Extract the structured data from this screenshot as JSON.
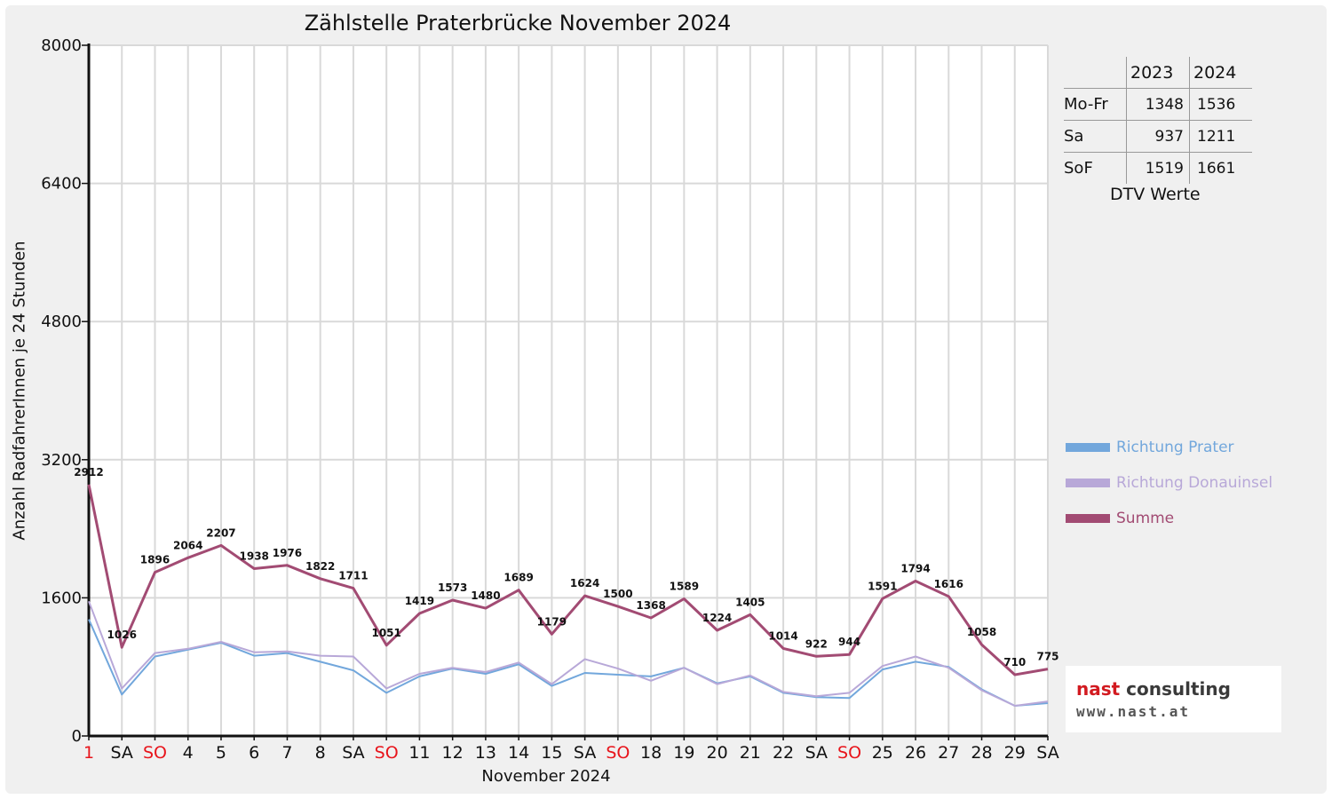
{
  "chart_data": {
    "type": "line",
    "title": "Zählstelle Praterbrücke November 2024",
    "xlabel": "November 2024",
    "ylabel": "Anzahl RadfahrerInnen je 24 Stunden",
    "ylim": [
      0,
      8000
    ],
    "yticks": [
      "0",
      "1600",
      "3200",
      "4800",
      "6400",
      "8000"
    ],
    "categories": [
      "1",
      "SA",
      "SO",
      "4",
      "5",
      "6",
      "7",
      "8",
      "SA",
      "SO",
      "11",
      "12",
      "13",
      "14",
      "15",
      "SA",
      "SO",
      "18",
      "19",
      "20",
      "21",
      "22",
      "SA",
      "SO",
      "25",
      "26",
      "27",
      "28",
      "29",
      "SA"
    ],
    "highlight_categories": [
      0,
      2,
      9,
      16,
      23
    ],
    "highlight_color": "#e8141b",
    "grid": true,
    "legend_position": "right",
    "series": [
      {
        "name": "Richtung Prater",
        "color": "#72a7dc",
        "values": [
          1350,
          480,
          920,
          1000,
          1080,
          930,
          960,
          860,
          760,
          500,
          690,
          780,
          720,
          830,
          580,
          730,
          710,
          690,
          790,
          610,
          690,
          500,
          450,
          440,
          770,
          860,
          800,
          540,
          350,
          380
        ]
      },
      {
        "name": "Richtung Donauinsel",
        "color": "#b8a8d8",
        "values": [
          1560,
          550,
          960,
          1010,
          1090,
          970,
          980,
          930,
          920,
          550,
          720,
          790,
          740,
          850,
          600,
          890,
          780,
          640,
          790,
          600,
          700,
          510,
          460,
          500,
          810,
          920,
          790,
          530,
          350,
          400
        ]
      },
      {
        "name": "Summe",
        "color": "#a24b73",
        "values": [
          2912,
          1026,
          1896,
          2064,
          2207,
          1938,
          1976,
          1822,
          1711,
          1051,
          1419,
          1573,
          1480,
          1689,
          1179,
          1624,
          1500,
          1368,
          1589,
          1224,
          1405,
          1014,
          922,
          944,
          1591,
          1794,
          1616,
          1058,
          710,
          775
        ]
      }
    ],
    "data_labels": [
      "2912",
      "1026",
      "1896",
      "2064",
      "2207",
      "1938",
      "1976",
      "1822",
      "1711",
      "1051",
      "1419",
      "1573",
      "1480",
      "1689",
      "1179",
      "1624",
      "1500",
      "1368",
      "1589",
      "1224",
      "1405",
      "1014",
      "922",
      "944",
      "1591",
      "1794",
      "1616",
      "1058",
      "710",
      "775"
    ]
  },
  "dtv_table": {
    "columns": [
      "2023",
      "2024"
    ],
    "rows": [
      {
        "label": "Mo-Fr",
        "v2023": "1348",
        "v2024": "1536"
      },
      {
        "label": "Sa",
        "v2023": "937",
        "v2024": "1211"
      },
      {
        "label": "SoF",
        "v2023": "1519",
        "v2024": "1661"
      }
    ],
    "caption": "DTV Werte"
  },
  "logo": {
    "line1_a": "nast",
    "line1_b": " consulting",
    "line2": "www.nast.at"
  }
}
